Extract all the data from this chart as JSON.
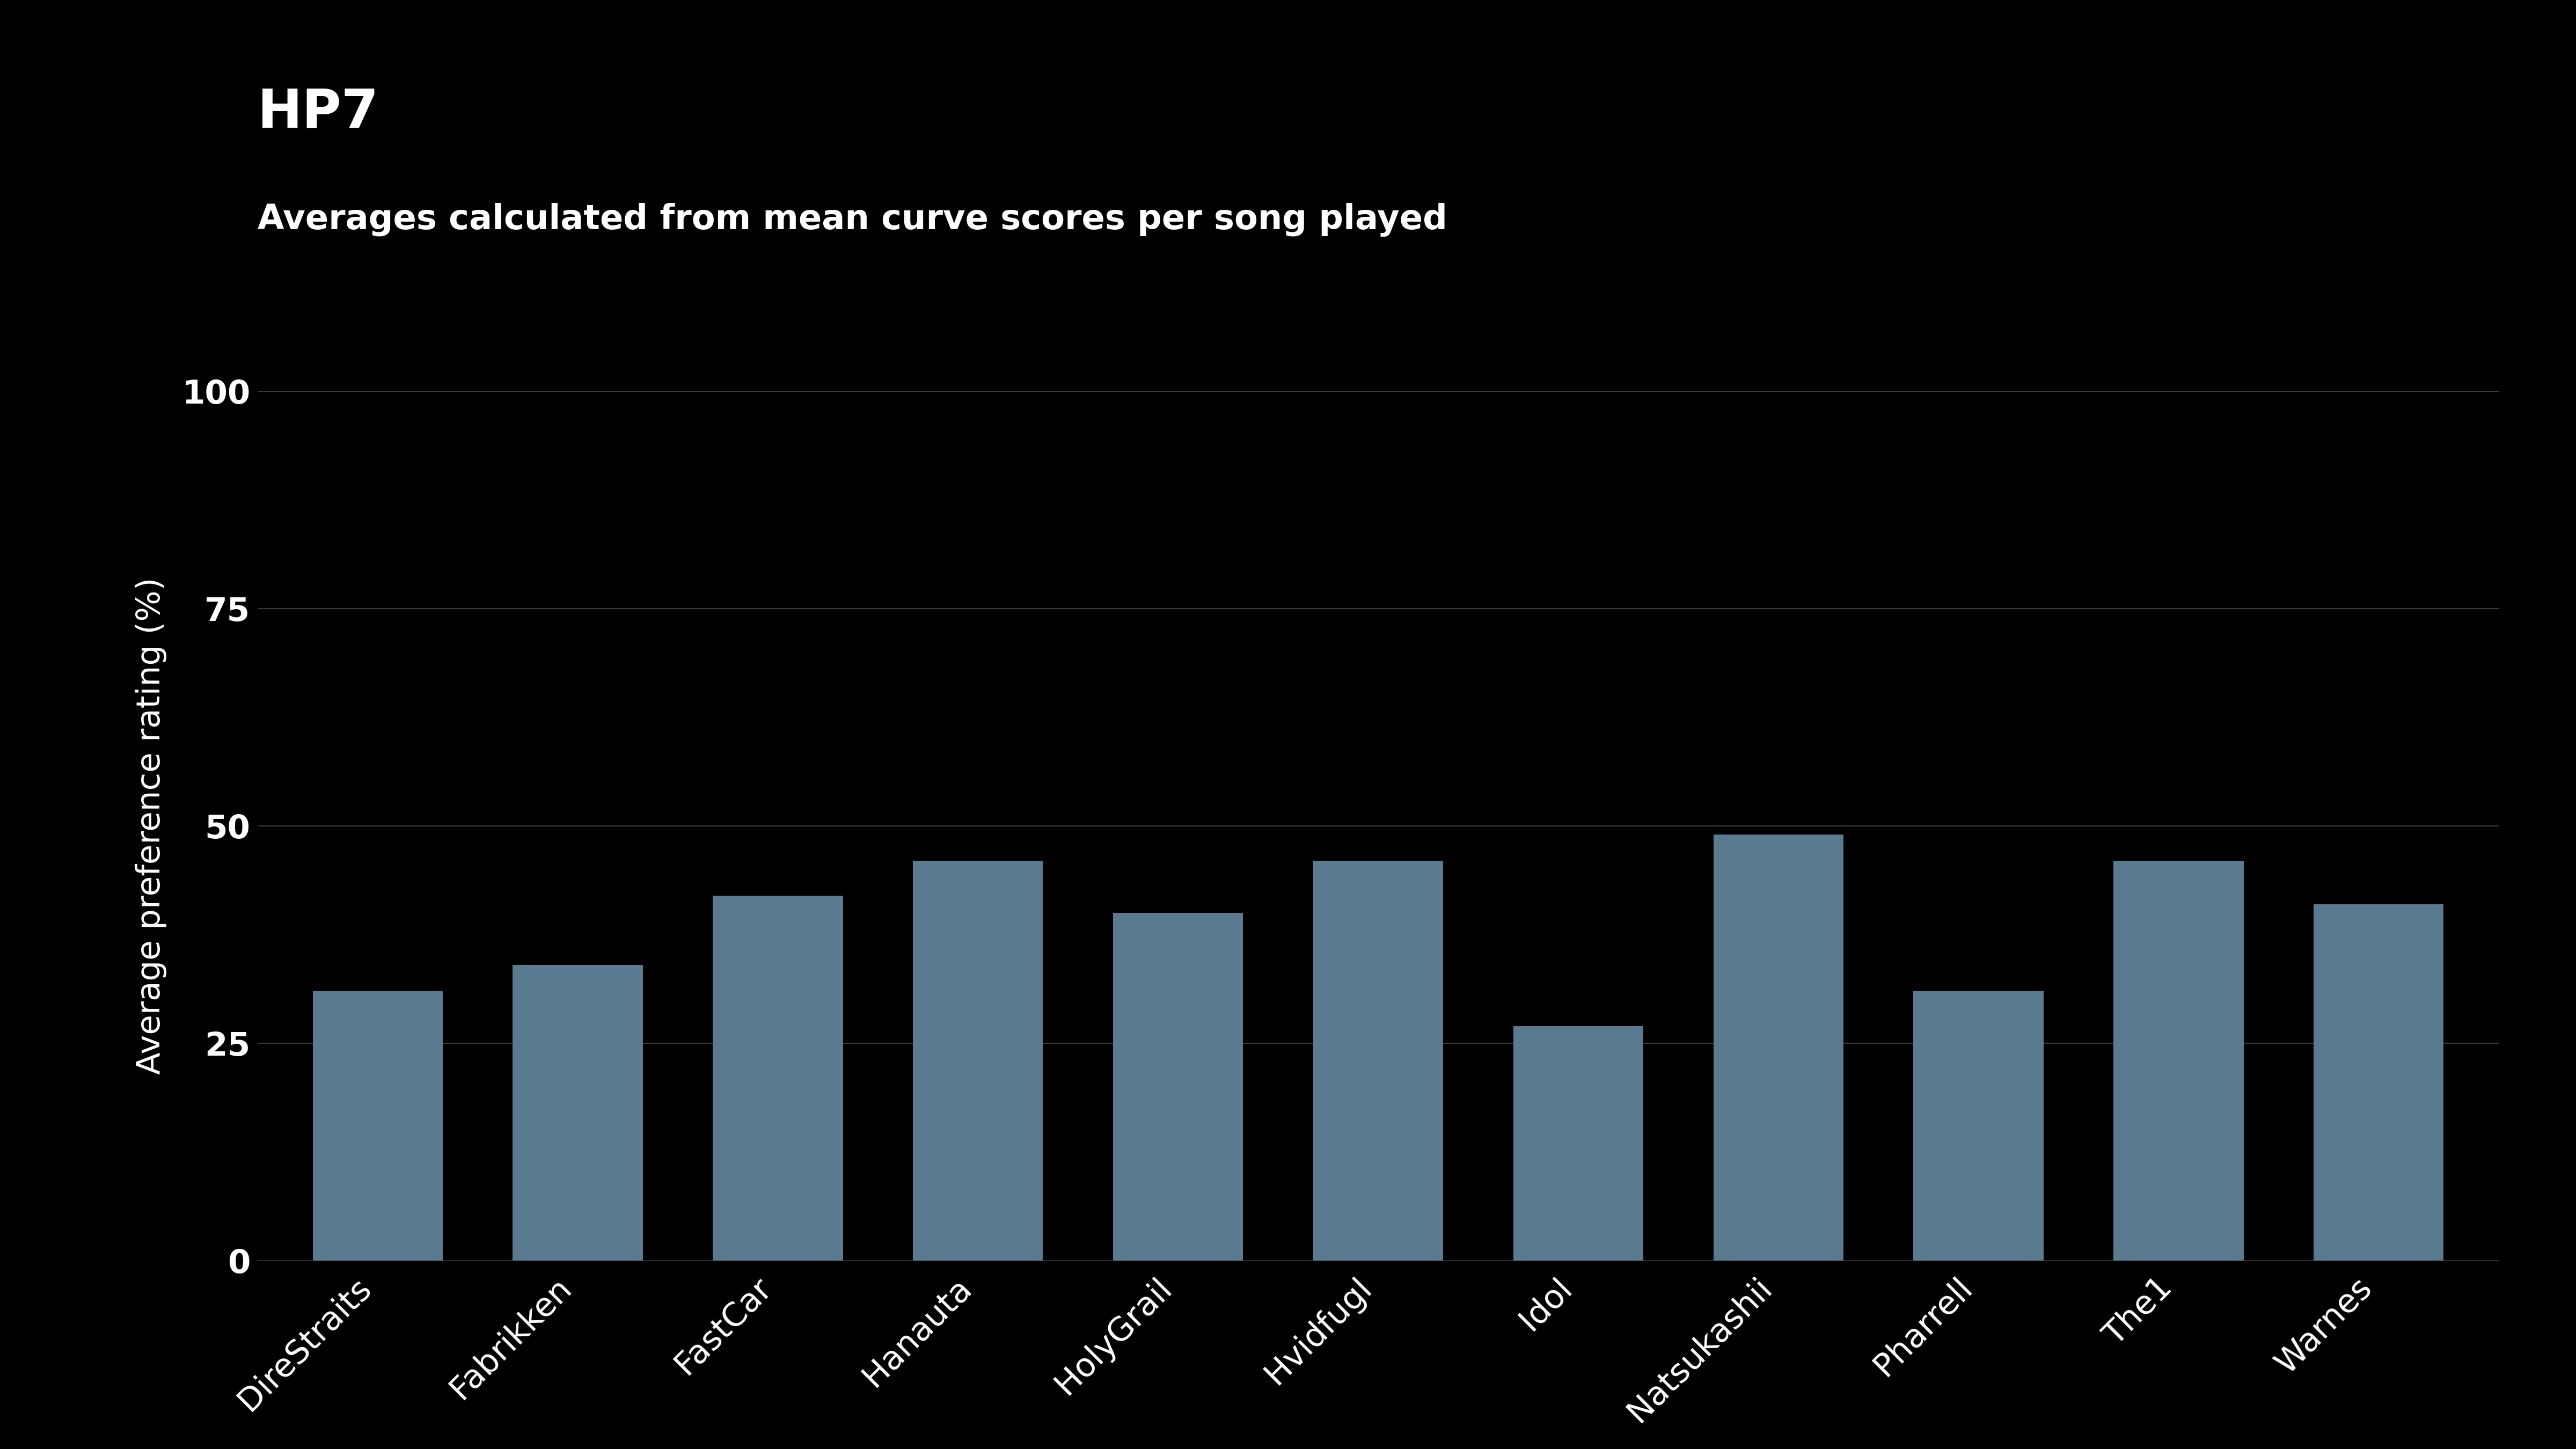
{
  "title": "HP7",
  "subtitle": "Averages calculated from mean curve scores per song played",
  "ylabel": "Average preference rating (%)",
  "categories": [
    "DireStraits",
    "Fabrikken",
    "FastCar",
    "Hanauta",
    "HolyGrail",
    "Hvidfugl",
    "Idol",
    "Natsukashii",
    "Pharrell",
    "The1",
    "Warnes"
  ],
  "values": [
    31,
    34,
    42,
    46,
    40,
    46,
    27,
    49,
    31,
    46,
    41
  ],
  "bar_color": "#5a7a90",
  "background_color": "#000000",
  "text_color": "#ffffff",
  "grid_color": "#3a3a3a",
  "ylim": [
    0,
    100
  ],
  "yticks": [
    0,
    25,
    50,
    75,
    100
  ],
  "title_fontsize": 72,
  "subtitle_fontsize": 46,
  "ylabel_fontsize": 44,
  "tick_fontsize": 44,
  "xtick_fontsize": 44,
  "bar_width": 0.65
}
